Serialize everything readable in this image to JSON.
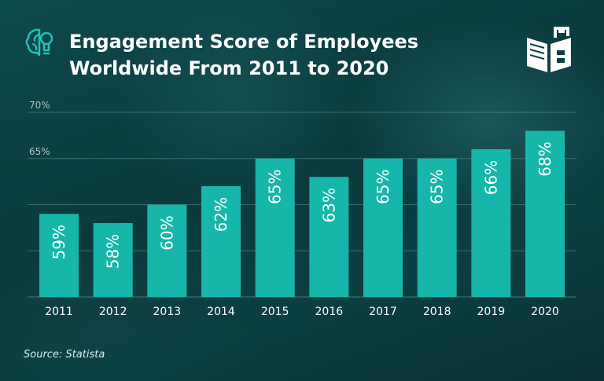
{
  "header": {
    "title_line1": "Engagement Score of Employees",
    "title_line2": "Worldwide From 2011 to 2020"
  },
  "footer": {
    "source": "Source: Statista"
  },
  "icons": {
    "left": "brain-icon",
    "right": "book-building-icon"
  },
  "colors": {
    "bar": "#16b6aa",
    "background": "#0b3f42",
    "text": "#ffffff"
  },
  "chart_data": {
    "type": "bar",
    "title": "Engagement Score of Employees Worldwide From 2011 to 2020",
    "categories": [
      "2011",
      "2012",
      "2013",
      "2014",
      "2015",
      "2016",
      "2017",
      "2018",
      "2019",
      "2020"
    ],
    "values": [
      59,
      58,
      60,
      62,
      65,
      63,
      65,
      65,
      66,
      68
    ],
    "data_labels": [
      "59%",
      "58%",
      "60%",
      "62%",
      "65%",
      "63%",
      "65%",
      "65%",
      "66%",
      "68%"
    ],
    "y_ticks": [
      65,
      70
    ],
    "y_tick_labels": [
      "65%",
      "70%"
    ],
    "ylim": [
      50,
      70
    ],
    "grid": true,
    "source": "Source: Statista"
  }
}
